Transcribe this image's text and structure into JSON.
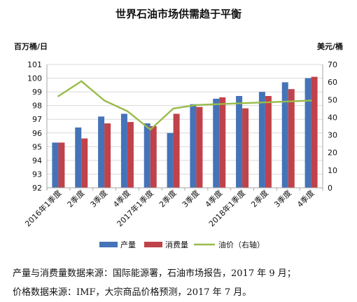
{
  "chart_data": {
    "type": "bar",
    "title": "世界石油市场供需趋于平衡",
    "left_unit": "百万桶/日",
    "right_unit": "美元/桶",
    "categories": [
      "2016年1季度",
      "2季度",
      "3季度",
      "4季度",
      "2017年1季度",
      "2季度",
      "3季度",
      "4季度",
      "2018年1季度",
      "2季度",
      "3季度",
      "4季度"
    ],
    "ylim": [
      92,
      101
    ],
    "y_ticks": [
      92,
      93,
      94,
      95,
      96,
      97,
      98,
      99,
      100,
      101
    ],
    "y2lim": [
      0,
      70
    ],
    "y2_ticks": [
      0,
      10,
      20,
      30,
      40,
      50,
      60,
      70
    ],
    "grid": true,
    "legend_position": "bottom",
    "series": [
      {
        "name": "产量",
        "type": "bar",
        "axis": "left",
        "color": "#4573b8",
        "values": [
          95.3,
          96.4,
          97.2,
          97.4,
          96.7,
          96.0,
          98.1,
          98.5,
          98.7,
          99.0,
          99.7,
          100.0
        ]
      },
      {
        "name": "消费量",
        "type": "bar",
        "axis": "left",
        "color": "#c0424a",
        "values": [
          95.3,
          95.6,
          96.7,
          96.8,
          96.5,
          97.4,
          97.9,
          98.6,
          97.8,
          98.7,
          99.2,
          100.1
        ]
      },
      {
        "name": "油价（右轴）",
        "type": "line",
        "axis": "right",
        "color": "#99bb4b",
        "values": [
          52,
          60.5,
          49.5,
          43.5,
          33,
          45,
          47,
          47.5,
          48,
          48.5,
          49,
          49.5
        ]
      }
    ]
  },
  "sources": [
    "产量与消费量数据来源：国际能源署，石油市场报告，2017 年 9 月；",
    "价格数据来源：IMF，大宗商品价格预测，2017 年 7 月。"
  ]
}
